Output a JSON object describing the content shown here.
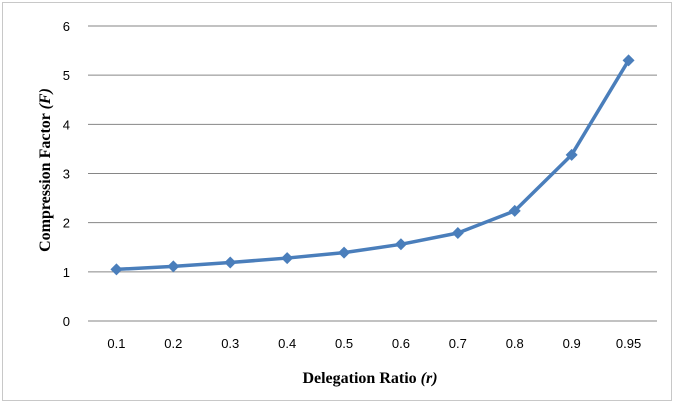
{
  "chart_data": {
    "type": "line",
    "title": "",
    "xlabel": "Delegation Ratio",
    "xlabel_var": "(r)",
    "ylabel": "Compression Factor",
    "ylabel_var": "(F)",
    "categories": [
      "0.1",
      "0.2",
      "0.3",
      "0.4",
      "0.5",
      "0.6",
      "0.7",
      "0.8",
      "0.9",
      "0.95"
    ],
    "series": [
      {
        "values": [
          1.05,
          1.11,
          1.19,
          1.28,
          1.39,
          1.56,
          1.79,
          2.24,
          3.38,
          5.3
        ],
        "color": "#4a7ebb"
      }
    ],
    "ylim": [
      0,
      6
    ],
    "yticks": [
      0,
      1,
      2,
      3,
      4,
      5,
      6
    ],
    "grid": true,
    "legend": "none",
    "marker": "diamond"
  }
}
